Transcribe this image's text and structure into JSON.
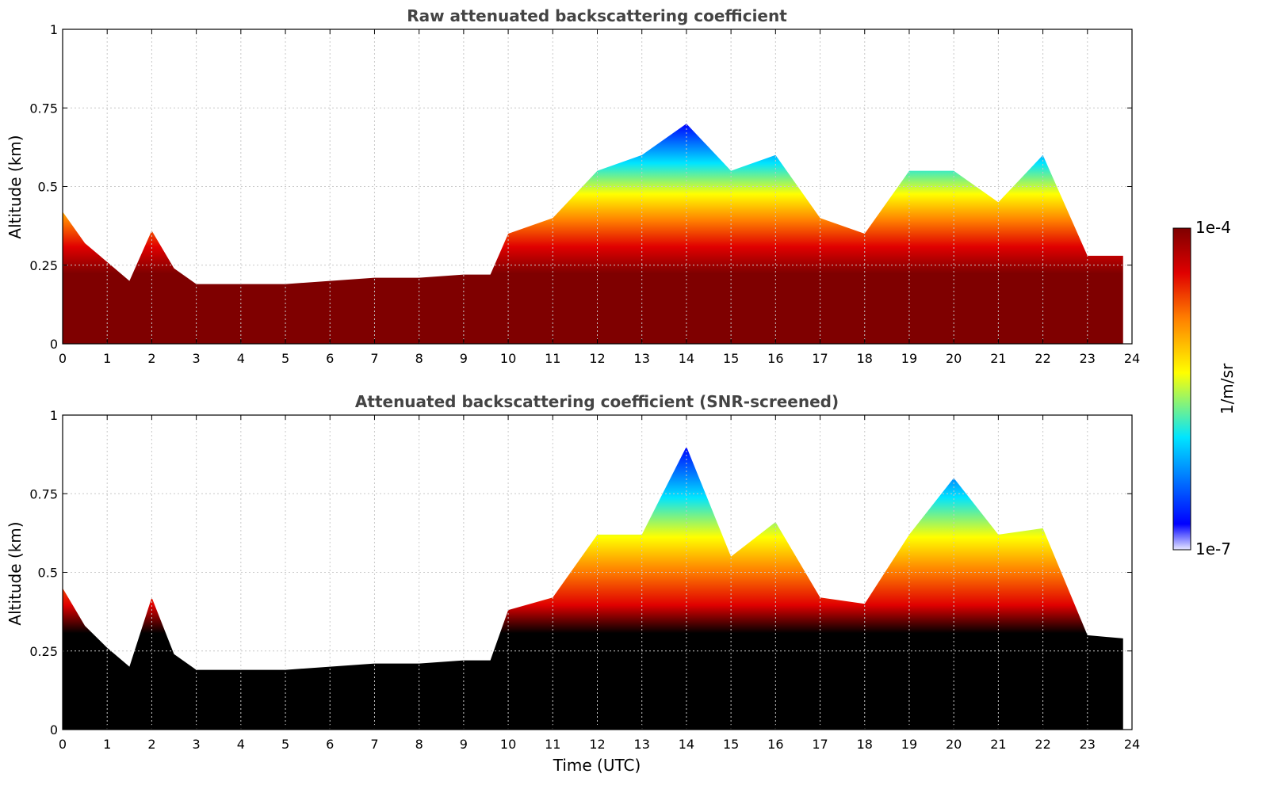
{
  "colors": {
    "low": "#e8e8ff",
    "blue": "#0000ff",
    "cyan": "#00e5ff",
    "yellow": "#ffff00",
    "orange": "#ff7f00",
    "red": "#e00000",
    "high": "#7f0000",
    "saturated": "#000000",
    "grid": "#c8c8c8"
  },
  "chart_data": [
    {
      "type": "heatmap",
      "title": "Raw attenuated backscattering coefficient",
      "xlabel": "",
      "ylabel": "Altitude (km)",
      "xlim": [
        0,
        24
      ],
      "ylim": [
        0,
        1
      ],
      "xticks": [
        "0",
        "1",
        "2",
        "3",
        "4",
        "5",
        "6",
        "7",
        "8",
        "9",
        "10",
        "11",
        "12",
        "13",
        "14",
        "15",
        "16",
        "17",
        "18",
        "19",
        "20",
        "21",
        "22",
        "23",
        "24"
      ],
      "yticks": [
        "0",
        "0.25",
        "0.5",
        "0.75",
        "1"
      ],
      "grid": true,
      "colorscale": "jet-like, log",
      "layer_top_km": {
        "time_utc": [
          0,
          0.5,
          1,
          1.5,
          2,
          2.5,
          3,
          4,
          5,
          6,
          7,
          8,
          9,
          9.6,
          10,
          11,
          12,
          13,
          14,
          15,
          16,
          17,
          18,
          19,
          20,
          21,
          22,
          23,
          23.8
        ],
        "altitude": [
          0.42,
          0.32,
          0.26,
          0.2,
          0.36,
          0.24,
          0.19,
          0.19,
          0.19,
          0.2,
          0.21,
          0.21,
          0.22,
          0.22,
          0.35,
          0.4,
          0.55,
          0.6,
          0.7,
          0.55,
          0.6,
          0.4,
          0.35,
          0.55,
          0.55,
          0.45,
          0.6,
          0.28,
          0.28
        ]
      }
    },
    {
      "type": "heatmap",
      "title": "Attenuated backscattering coefficient (SNR-screened)",
      "xlabel": "Time (UTC)",
      "ylabel": "Altitude (km)",
      "xlim": [
        0,
        24
      ],
      "ylim": [
        0,
        1
      ],
      "xticks": [
        "0",
        "1",
        "2",
        "3",
        "4",
        "5",
        "6",
        "7",
        "8",
        "9",
        "10",
        "11",
        "12",
        "13",
        "14",
        "15",
        "16",
        "17",
        "18",
        "19",
        "20",
        "21",
        "22",
        "23",
        "24"
      ],
      "yticks": [
        "0",
        "0.25",
        "0.5",
        "0.75",
        "1"
      ],
      "grid": true,
      "colorscale": "jet-like, log, saturated values shown black",
      "layer_top_km": {
        "time_utc": [
          0,
          0.5,
          1,
          1.5,
          2,
          2.5,
          3,
          4,
          5,
          6,
          7,
          8,
          9,
          9.6,
          10,
          11,
          12,
          13,
          14,
          15,
          16,
          17,
          18,
          19,
          20,
          21,
          22,
          23,
          23.8
        ],
        "altitude": [
          0.45,
          0.33,
          0.26,
          0.2,
          0.42,
          0.24,
          0.19,
          0.19,
          0.19,
          0.2,
          0.21,
          0.21,
          0.22,
          0.22,
          0.38,
          0.42,
          0.62,
          0.62,
          0.9,
          0.55,
          0.66,
          0.42,
          0.4,
          0.62,
          0.8,
          0.62,
          0.64,
          0.3,
          0.29
        ]
      }
    }
  ],
  "colorbar": {
    "max_label": "1e-4",
    "min_label": "1e-7",
    "unit_label": "1/m/sr"
  }
}
